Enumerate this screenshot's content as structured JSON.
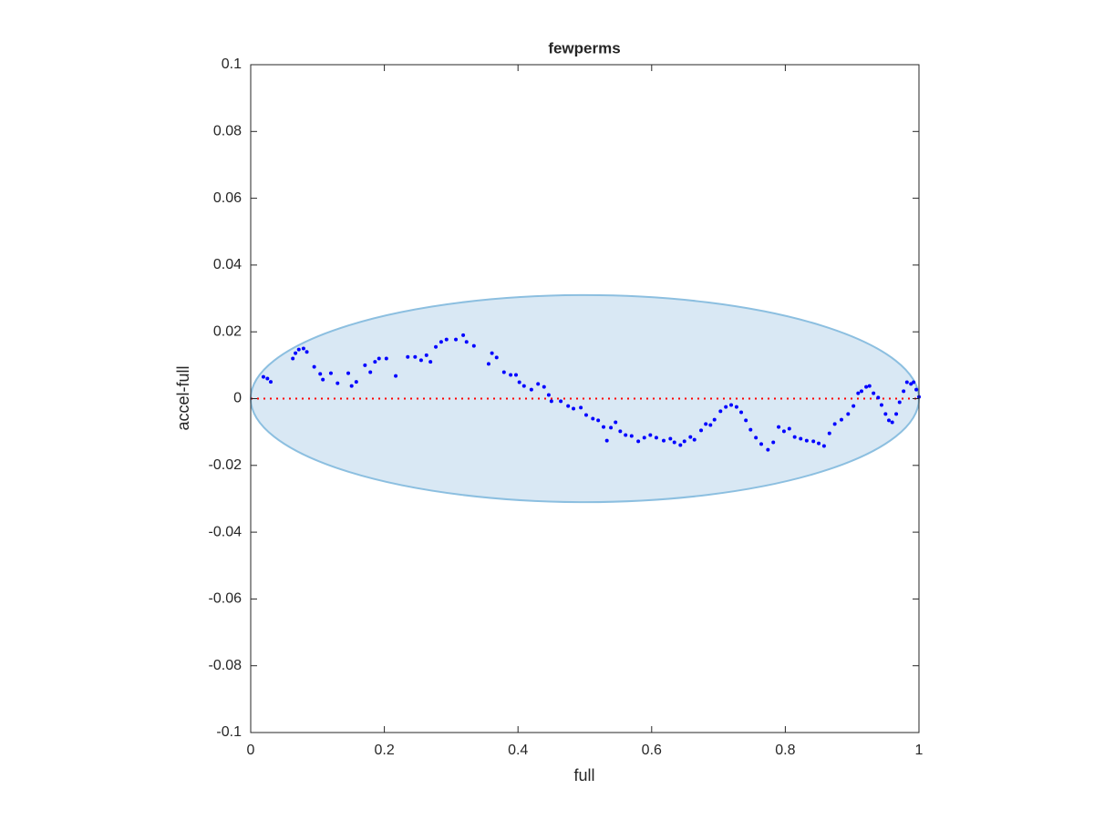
{
  "chart_data": {
    "type": "scatter",
    "title": "fewperms",
    "x_label": "full",
    "y_label": "accel-full",
    "xlim": [
      0,
      1
    ],
    "ylim": [
      -0.1,
      0.1
    ],
    "xticks": [
      0,
      0.2,
      0.4,
      0.6,
      0.8,
      1
    ],
    "yticks": [
      -0.1,
      -0.08,
      -0.06,
      -0.04,
      -0.02,
      0,
      0.02,
      0.04,
      0.06,
      0.08,
      0.1
    ],
    "grid": false,
    "ellipse": {
      "center": [
        0.5,
        0
      ],
      "radii": [
        0.5,
        0.031
      ],
      "fill": "#d9e8f4",
      "stroke": "#8cbfe0"
    },
    "reference_line": {
      "y": 0,
      "color": "#ff0000"
    },
    "series": [
      {
        "color": "#0000ff",
        "x": [
          0.019,
          0.025,
          0.03,
          0.063,
          0.067,
          0.072,
          0.079,
          0.084,
          0.095,
          0.104,
          0.108,
          0.12,
          0.13,
          0.146,
          0.151,
          0.158,
          0.171,
          0.179,
          0.186,
          0.192,
          0.203,
          0.217,
          0.235,
          0.246,
          0.255,
          0.263,
          0.269,
          0.277,
          0.285,
          0.293,
          0.307,
          0.318,
          0.323,
          0.334,
          0.356,
          0.361,
          0.368,
          0.379,
          0.389,
          0.397,
          0.402,
          0.409,
          0.42,
          0.43,
          0.439,
          0.446,
          0.45,
          0.464,
          0.475,
          0.483,
          0.494,
          0.502,
          0.512,
          0.52,
          0.528,
          0.533,
          0.539,
          0.546,
          0.553,
          0.561,
          0.57,
          0.58,
          0.589,
          0.598,
          0.607,
          0.618,
          0.628,
          0.634,
          0.643,
          0.649,
          0.658,
          0.664,
          0.674,
          0.681,
          0.688,
          0.694,
          0.703,
          0.711,
          0.719,
          0.727,
          0.734,
          0.741,
          0.748,
          0.756,
          0.764,
          0.774,
          0.782,
          0.79,
          0.798,
          0.806,
          0.814,
          0.823,
          0.832,
          0.842,
          0.85,
          0.858,
          0.866,
          0.874,
          0.884,
          0.894,
          0.902,
          0.909,
          0.914,
          0.921,
          0.926,
          0.932,
          0.939,
          0.944,
          0.95,
          0.955,
          0.96,
          0.966,
          0.971,
          0.977,
          0.982,
          0.988,
          0.992,
          0.996,
          1.0
        ],
        "values": [
          0.0065,
          0.006,
          0.005,
          0.012,
          0.0136,
          0.0147,
          0.015,
          0.014,
          0.0095,
          0.0074,
          0.0057,
          0.0076,
          0.0046,
          0.0076,
          0.0038,
          0.005,
          0.01,
          0.0079,
          0.011,
          0.012,
          0.012,
          0.0068,
          0.0125,
          0.0125,
          0.0115,
          0.013,
          0.011,
          0.0155,
          0.017,
          0.0177,
          0.0177,
          0.019,
          0.017,
          0.0158,
          0.0104,
          0.0136,
          0.0123,
          0.0079,
          0.0071,
          0.0071,
          0.0049,
          0.0038,
          0.0027,
          0.0044,
          0.0035,
          0.0011,
          -0.0008,
          -0.0008,
          -0.0022,
          -0.003,
          -0.0027,
          -0.0049,
          -0.006,
          -0.0065,
          -0.0085,
          -0.0126,
          -0.0087,
          -0.0071,
          -0.0098,
          -0.0109,
          -0.0112,
          -0.0128,
          -0.0117,
          -0.0109,
          -0.0117,
          -0.0126,
          -0.012,
          -0.0131,
          -0.0139,
          -0.0128,
          -0.0115,
          -0.0123,
          -0.0095,
          -0.0076,
          -0.0079,
          -0.0063,
          -0.0038,
          -0.0025,
          -0.0019,
          -0.0025,
          -0.0041,
          -0.0065,
          -0.0093,
          -0.0117,
          -0.0136,
          -0.0153,
          -0.0131,
          -0.0085,
          -0.0098,
          -0.009,
          -0.0115,
          -0.012,
          -0.0126,
          -0.0128,
          -0.0134,
          -0.0142,
          -0.0104,
          -0.0076,
          -0.0063,
          -0.0046,
          -0.0022,
          0.0016,
          0.0022,
          0.0035,
          0.0038,
          0.0016,
          0.0003,
          -0.0019,
          -0.0046,
          -0.0065,
          -0.0071,
          -0.0046,
          -0.0011,
          0.0022,
          0.0049,
          0.0044,
          0.0049,
          0.0027,
          0.0005
        ]
      }
    ]
  }
}
